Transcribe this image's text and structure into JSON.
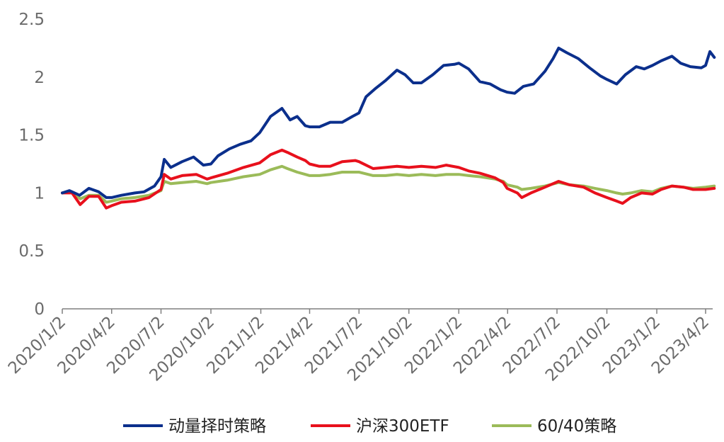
{
  "chart_data": {
    "type": "line",
    "title": "",
    "xlabel": "",
    "ylabel": "",
    "ylim": [
      0,
      2.5
    ],
    "y_ticks": [
      "0",
      "0.5",
      "1",
      "1.5",
      "2",
      "2.5"
    ],
    "x_ticks": [
      "2020/1/2",
      "2020/4/2",
      "2020/7/2",
      "2020/10/2",
      "2021/1/2",
      "2021/4/2",
      "2021/7/2",
      "2021/10/2",
      "2022/1/2",
      "2022/4/2",
      "2022/7/2",
      "2022/10/2",
      "2023/1/2",
      "2023/4/2"
    ],
    "grid": false,
    "legend": "bottom",
    "series": [
      {
        "name": "动量择时策略",
        "color": "#0b2f8c",
        "points": [
          [
            "2020/1/2",
            1.0
          ],
          [
            "2020/1/15",
            1.02
          ],
          [
            "2020/2/3",
            0.98
          ],
          [
            "2020/2/20",
            1.04
          ],
          [
            "2020/3/9",
            1.01
          ],
          [
            "2020/3/23",
            0.96
          ],
          [
            "2020/4/2",
            0.96
          ],
          [
            "2020/4/20",
            0.98
          ],
          [
            "2020/5/15",
            1.0
          ],
          [
            "2020/6/1",
            1.01
          ],
          [
            "2020/6/20",
            1.06
          ],
          [
            "2020/7/2",
            1.14
          ],
          [
            "2020/7/8",
            1.29
          ],
          [
            "2020/7/20",
            1.22
          ],
          [
            "2020/8/10",
            1.27
          ],
          [
            "2020/8/31",
            1.31
          ],
          [
            "2020/9/18",
            1.24
          ],
          [
            "2020/10/2",
            1.25
          ],
          [
            "2020/10/15",
            1.32
          ],
          [
            "2020/11/5",
            1.38
          ],
          [
            "2020/11/25",
            1.42
          ],
          [
            "2020/12/15",
            1.45
          ],
          [
            "2020/12/31",
            1.52
          ],
          [
            "2021/1/20",
            1.66
          ],
          [
            "2021/2/10",
            1.73
          ],
          [
            "2021/2/25",
            1.63
          ],
          [
            "2021/3/10",
            1.66
          ],
          [
            "2021/3/25",
            1.58
          ],
          [
            "2021/4/2",
            1.57
          ],
          [
            "2021/4/20",
            1.57
          ],
          [
            "2021/5/10",
            1.61
          ],
          [
            "2021/6/1",
            1.61
          ],
          [
            "2021/6/20",
            1.66
          ],
          [
            "2021/7/2",
            1.69
          ],
          [
            "2021/7/15",
            1.83
          ],
          [
            "2021/8/1",
            1.9
          ],
          [
            "2021/8/20",
            1.97
          ],
          [
            "2021/9/10",
            2.06
          ],
          [
            "2021/9/25",
            2.02
          ],
          [
            "2021/10/10",
            1.95
          ],
          [
            "2021/10/25",
            1.95
          ],
          [
            "2021/11/15",
            2.02
          ],
          [
            "2021/12/5",
            2.1
          ],
          [
            "2021/12/25",
            2.11
          ],
          [
            "2022/1/2",
            2.12
          ],
          [
            "2022/1/20",
            2.07
          ],
          [
            "2022/2/10",
            1.96
          ],
          [
            "2022/3/1",
            1.94
          ],
          [
            "2022/3/20",
            1.89
          ],
          [
            "2022/4/1",
            1.87
          ],
          [
            "2022/4/15",
            1.86
          ],
          [
            "2022/5/1",
            1.92
          ],
          [
            "2022/5/20",
            1.94
          ],
          [
            "2022/6/10",
            2.05
          ],
          [
            "2022/6/25",
            2.16
          ],
          [
            "2022/7/5",
            2.25
          ],
          [
            "2022/7/20",
            2.21
          ],
          [
            "2022/8/10",
            2.16
          ],
          [
            "2022/8/31",
            2.08
          ],
          [
            "2022/9/20",
            2.01
          ],
          [
            "2022/10/2",
            1.98
          ],
          [
            "2022/10/20",
            1.94
          ],
          [
            "2022/11/5",
            2.02
          ],
          [
            "2022/11/25",
            2.09
          ],
          [
            "2022/12/10",
            2.07
          ],
          [
            "2022/12/25",
            2.1
          ],
          [
            "2023/1/10",
            2.14
          ],
          [
            "2023/1/30",
            2.18
          ],
          [
            "2023/2/15",
            2.12
          ],
          [
            "2023/3/5",
            2.09
          ],
          [
            "2023/3/25",
            2.08
          ],
          [
            "2023/4/2",
            2.1
          ],
          [
            "2023/4/10",
            2.22
          ],
          [
            "2023/4/18",
            2.17
          ]
        ]
      },
      {
        "name": "沪深300ETF",
        "color": "#e8101c",
        "points": [
          [
            "2020/1/2",
            1.0
          ],
          [
            "2020/1/20",
            1.0
          ],
          [
            "2020/2/4",
            0.9
          ],
          [
            "2020/2/20",
            0.97
          ],
          [
            "2020/3/9",
            0.97
          ],
          [
            "2020/3/23",
            0.87
          ],
          [
            "2020/4/2",
            0.89
          ],
          [
            "2020/4/20",
            0.92
          ],
          [
            "2020/5/15",
            0.93
          ],
          [
            "2020/6/10",
            0.96
          ],
          [
            "2020/7/2",
            1.03
          ],
          [
            "2020/7/8",
            1.16
          ],
          [
            "2020/7/20",
            1.12
          ],
          [
            "2020/8/10",
            1.15
          ],
          [
            "2020/9/5",
            1.16
          ],
          [
            "2020/9/25",
            1.12
          ],
          [
            "2020/10/2",
            1.13
          ],
          [
            "2020/11/1",
            1.17
          ],
          [
            "2020/12/1",
            1.22
          ],
          [
            "2020/12/31",
            1.26
          ],
          [
            "2021/1/20",
            1.33
          ],
          [
            "2021/2/10",
            1.37
          ],
          [
            "2021/2/20",
            1.35
          ],
          [
            "2021/3/10",
            1.31
          ],
          [
            "2021/3/25",
            1.28
          ],
          [
            "2021/4/2",
            1.25
          ],
          [
            "2021/4/20",
            1.23
          ],
          [
            "2021/5/10",
            1.23
          ],
          [
            "2021/6/1",
            1.27
          ],
          [
            "2021/6/25",
            1.28
          ],
          [
            "2021/7/2",
            1.27
          ],
          [
            "2021/7/28",
            1.21
          ],
          [
            "2021/8/20",
            1.22
          ],
          [
            "2021/9/10",
            1.23
          ],
          [
            "2021/10/2",
            1.22
          ],
          [
            "2021/10/25",
            1.23
          ],
          [
            "2021/11/20",
            1.22
          ],
          [
            "2021/12/10",
            1.24
          ],
          [
            "2022/1/2",
            1.22
          ],
          [
            "2022/1/20",
            1.19
          ],
          [
            "2022/2/10",
            1.17
          ],
          [
            "2022/3/10",
            1.13
          ],
          [
            "2022/3/25",
            1.09
          ],
          [
            "2022/4/1",
            1.04
          ],
          [
            "2022/4/20",
            1.0
          ],
          [
            "2022/4/28",
            0.96
          ],
          [
            "2022/5/15",
            1.0
          ],
          [
            "2022/6/10",
            1.05
          ],
          [
            "2022/7/5",
            1.1
          ],
          [
            "2022/7/25",
            1.07
          ],
          [
            "2022/8/20",
            1.05
          ],
          [
            "2022/9/10",
            1.0
          ],
          [
            "2022/10/2",
            0.96
          ],
          [
            "2022/10/20",
            0.93
          ],
          [
            "2022/10/31",
            0.91
          ],
          [
            "2022/11/15",
            0.96
          ],
          [
            "2022/12/5",
            1.0
          ],
          [
            "2022/12/25",
            0.99
          ],
          [
            "2023/1/10",
            1.03
          ],
          [
            "2023/1/30",
            1.06
          ],
          [
            "2023/2/20",
            1.05
          ],
          [
            "2023/3/10",
            1.03
          ],
          [
            "2023/4/2",
            1.03
          ],
          [
            "2023/4/18",
            1.04
          ]
        ]
      },
      {
        "name": "60/40策略",
        "color": "#9bbb59",
        "points": [
          [
            "2020/1/2",
            1.0
          ],
          [
            "2020/1/20",
            1.01
          ],
          [
            "2020/2/4",
            0.95
          ],
          [
            "2020/2/20",
            0.98
          ],
          [
            "2020/3/9",
            0.98
          ],
          [
            "2020/3/23",
            0.92
          ],
          [
            "2020/4/2",
            0.93
          ],
          [
            "2020/4/20",
            0.95
          ],
          [
            "2020/5/15",
            0.96
          ],
          [
            "2020/6/10",
            0.98
          ],
          [
            "2020/7/2",
            1.02
          ],
          [
            "2020/7/8",
            1.1
          ],
          [
            "2020/7/20",
            1.08
          ],
          [
            "2020/8/10",
            1.09
          ],
          [
            "2020/9/5",
            1.1
          ],
          [
            "2020/9/25",
            1.08
          ],
          [
            "2020/10/2",
            1.09
          ],
          [
            "2020/11/1",
            1.11
          ],
          [
            "2020/12/1",
            1.14
          ],
          [
            "2020/12/31",
            1.16
          ],
          [
            "2021/1/20",
            1.2
          ],
          [
            "2021/2/10",
            1.23
          ],
          [
            "2021/2/20",
            1.21
          ],
          [
            "2021/3/10",
            1.18
          ],
          [
            "2021/3/25",
            1.16
          ],
          [
            "2021/4/2",
            1.15
          ],
          [
            "2021/4/20",
            1.15
          ],
          [
            "2021/5/10",
            1.16
          ],
          [
            "2021/6/1",
            1.18
          ],
          [
            "2021/6/25",
            1.18
          ],
          [
            "2021/7/2",
            1.18
          ],
          [
            "2021/7/28",
            1.15
          ],
          [
            "2021/8/20",
            1.15
          ],
          [
            "2021/9/10",
            1.16
          ],
          [
            "2021/10/2",
            1.15
          ],
          [
            "2021/10/25",
            1.16
          ],
          [
            "2021/11/20",
            1.15
          ],
          [
            "2021/12/10",
            1.16
          ],
          [
            "2022/1/2",
            1.16
          ],
          [
            "2022/1/20",
            1.15
          ],
          [
            "2022/2/10",
            1.14
          ],
          [
            "2022/3/10",
            1.12
          ],
          [
            "2022/3/25",
            1.1
          ],
          [
            "2022/4/1",
            1.07
          ],
          [
            "2022/4/20",
            1.05
          ],
          [
            "2022/4/28",
            1.03
          ],
          [
            "2022/5/15",
            1.04
          ],
          [
            "2022/6/10",
            1.06
          ],
          [
            "2022/7/5",
            1.09
          ],
          [
            "2022/7/25",
            1.07
          ],
          [
            "2022/8/20",
            1.06
          ],
          [
            "2022/9/10",
            1.04
          ],
          [
            "2022/10/2",
            1.02
          ],
          [
            "2022/10/20",
            1.0
          ],
          [
            "2022/10/31",
            0.99
          ],
          [
            "2022/11/15",
            1.0
          ],
          [
            "2022/12/5",
            1.02
          ],
          [
            "2022/12/25",
            1.01
          ],
          [
            "2023/1/10",
            1.04
          ],
          [
            "2023/1/30",
            1.06
          ],
          [
            "2023/2/20",
            1.05
          ],
          [
            "2023/3/10",
            1.04
          ],
          [
            "2023/4/2",
            1.05
          ],
          [
            "2023/4/18",
            1.06
          ]
        ]
      }
    ]
  }
}
